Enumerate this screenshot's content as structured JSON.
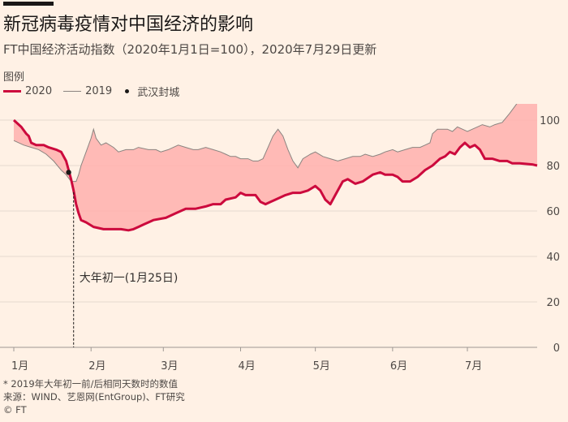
{
  "header": {
    "title": "新冠病毒疫情对中国经济的影响",
    "subtitle": "FT中国经济活动指数（2020年1月1日=100），2020年7月29日更新"
  },
  "legend": {
    "title": "图例",
    "items": [
      "2020",
      "2019",
      "武汉封城"
    ]
  },
  "annotation": "大年初一(1月25日)",
  "footnote": {
    "note": "* 2019年大年初一前/后相同天数时的数值",
    "source": "来源：WIND、艺恩网(EntGroup)、FT研究",
    "credit": "© FT"
  },
  "colors": {
    "line_2020": "#cc0a3d",
    "line_2019": "#8a8480",
    "fill_gap": "#ffb0ae",
    "grid": "#e6d9ce",
    "background": "#fff1e5"
  },
  "chart_data": {
    "type": "line",
    "x_unit": "day of year 2020 (1 = 1月1日)",
    "x_ticks": [
      {
        "x": 1,
        "label": "1月"
      },
      {
        "x": 32,
        "label": "2月"
      },
      {
        "x": 61,
        "label": "3月"
      },
      {
        "x": 92,
        "label": "4月"
      },
      {
        "x": 122,
        "label": "5月"
      },
      {
        "x": 153,
        "label": "6月"
      },
      {
        "x": 183,
        "label": "7月"
      }
    ],
    "xlim": [
      1,
      211
    ],
    "ylim": [
      0,
      110
    ],
    "y_ticks": [
      0,
      20,
      40,
      60,
      80,
      100
    ],
    "grid": true,
    "legend_position": "top-left",
    "lockdown_point": {
      "x": 23,
      "y": 77
    },
    "annotation_x": 25,
    "series": [
      {
        "name": "2020",
        "style": "bold",
        "points": [
          [
            1,
            100
          ],
          [
            4,
            97
          ],
          [
            6,
            94
          ],
          [
            7,
            93
          ],
          [
            8,
            90
          ],
          [
            10,
            89
          ],
          [
            12,
            89
          ],
          [
            13,
            89
          ],
          [
            15,
            88
          ],
          [
            18,
            87
          ],
          [
            20,
            86
          ],
          [
            22,
            82
          ],
          [
            23,
            78
          ],
          [
            24,
            74
          ],
          [
            25,
            69
          ],
          [
            26,
            63
          ],
          [
            27,
            59
          ],
          [
            28,
            56
          ],
          [
            30,
            55
          ],
          [
            33,
            53
          ],
          [
            37,
            52
          ],
          [
            41,
            52
          ],
          [
            44,
            52
          ],
          [
            47,
            51.5
          ],
          [
            49,
            52
          ],
          [
            51,
            53
          ],
          [
            53,
            54
          ],
          [
            55,
            55
          ],
          [
            57,
            56
          ],
          [
            62,
            57
          ],
          [
            66,
            59
          ],
          [
            70,
            61
          ],
          [
            74,
            61
          ],
          [
            78,
            62
          ],
          [
            81,
            63
          ],
          [
            84,
            63
          ],
          [
            86,
            65
          ],
          [
            90,
            66
          ],
          [
            92,
            68
          ],
          [
            94,
            67
          ],
          [
            98,
            67
          ],
          [
            100,
            64
          ],
          [
            102,
            63
          ],
          [
            104,
            64
          ],
          [
            106,
            65
          ],
          [
            110,
            67
          ],
          [
            113,
            68
          ],
          [
            116,
            68
          ],
          [
            119,
            69
          ],
          [
            122,
            71
          ],
          [
            124,
            69
          ],
          [
            126,
            65
          ],
          [
            128,
            63
          ],
          [
            130,
            67
          ],
          [
            133,
            73
          ],
          [
            135,
            74
          ],
          [
            138,
            72
          ],
          [
            141,
            73
          ],
          [
            145,
            76
          ],
          [
            148,
            77
          ],
          [
            150,
            76
          ],
          [
            153,
            76
          ],
          [
            155,
            75
          ],
          [
            157,
            73
          ],
          [
            160,
            73
          ],
          [
            163,
            75
          ],
          [
            166,
            78
          ],
          [
            169,
            80
          ],
          [
            172,
            83
          ],
          [
            174,
            84
          ],
          [
            176,
            86
          ],
          [
            178,
            85
          ],
          [
            180,
            88
          ],
          [
            182,
            90
          ],
          [
            184,
            88
          ],
          [
            186,
            89
          ],
          [
            188,
            87
          ],
          [
            190,
            83
          ],
          [
            193,
            83
          ],
          [
            196,
            82
          ],
          [
            199,
            82
          ],
          [
            201,
            81
          ],
          [
            204,
            81
          ],
          [
            209,
            80.5
          ],
          [
            211,
            80
          ]
        ]
      },
      {
        "name": "2019",
        "style": "thin",
        "points": [
          [
            1,
            91
          ],
          [
            5,
            89
          ],
          [
            8,
            88
          ],
          [
            11,
            87
          ],
          [
            14,
            85
          ],
          [
            17,
            82
          ],
          [
            20,
            78
          ],
          [
            22,
            76
          ],
          [
            24,
            73
          ],
          [
            26,
            73
          ],
          [
            27,
            76
          ],
          [
            28,
            80
          ],
          [
            30,
            86
          ],
          [
            32,
            92
          ],
          [
            33,
            96
          ],
          [
            34,
            92
          ],
          [
            36,
            89
          ],
          [
            38,
            90
          ],
          [
            41,
            88
          ],
          [
            43,
            86
          ],
          [
            46,
            87
          ],
          [
            49,
            87
          ],
          [
            51,
            88
          ],
          [
            55,
            87
          ],
          [
            58,
            87
          ],
          [
            60,
            86
          ],
          [
            63,
            87
          ],
          [
            65,
            88
          ],
          [
            67,
            89
          ],
          [
            70,
            88
          ],
          [
            73,
            87
          ],
          [
            75,
            87
          ],
          [
            78,
            88
          ],
          [
            81,
            87
          ],
          [
            84,
            86
          ],
          [
            86,
            85
          ],
          [
            88,
            84
          ],
          [
            90,
            84
          ],
          [
            92,
            83
          ],
          [
            95,
            83
          ],
          [
            97,
            82
          ],
          [
            99,
            82
          ],
          [
            101,
            83
          ],
          [
            103,
            88
          ],
          [
            105,
            93
          ],
          [
            107,
            96
          ],
          [
            109,
            93
          ],
          [
            111,
            87
          ],
          [
            113,
            82
          ],
          [
            115,
            79
          ],
          [
            117,
            83
          ],
          [
            120,
            85
          ],
          [
            122,
            86
          ],
          [
            125,
            84
          ],
          [
            128,
            83
          ],
          [
            131,
            82
          ],
          [
            134,
            83
          ],
          [
            137,
            84
          ],
          [
            140,
            84
          ],
          [
            142,
            85
          ],
          [
            145,
            84
          ],
          [
            148,
            85
          ],
          [
            150,
            86
          ],
          [
            153,
            87
          ],
          [
            155,
            86
          ],
          [
            158,
            87
          ],
          [
            161,
            88
          ],
          [
            164,
            88
          ],
          [
            166,
            89
          ],
          [
            168,
            90
          ],
          [
            169,
            94
          ],
          [
            171,
            96
          ],
          [
            173,
            96
          ],
          [
            175,
            96
          ],
          [
            177,
            95
          ],
          [
            179,
            97
          ],
          [
            181,
            96
          ],
          [
            183,
            95
          ],
          [
            185,
            96
          ],
          [
            187,
            97
          ],
          [
            189,
            98
          ],
          [
            192,
            97
          ],
          [
            194,
            98
          ],
          [
            197,
            99
          ],
          [
            200,
            103
          ],
          [
            202,
            106
          ],
          [
            204,
            109
          ],
          [
            206,
            109
          ],
          [
            208,
            108
          ],
          [
            210,
            109
          ],
          [
            211,
            108
          ]
        ]
      }
    ]
  }
}
